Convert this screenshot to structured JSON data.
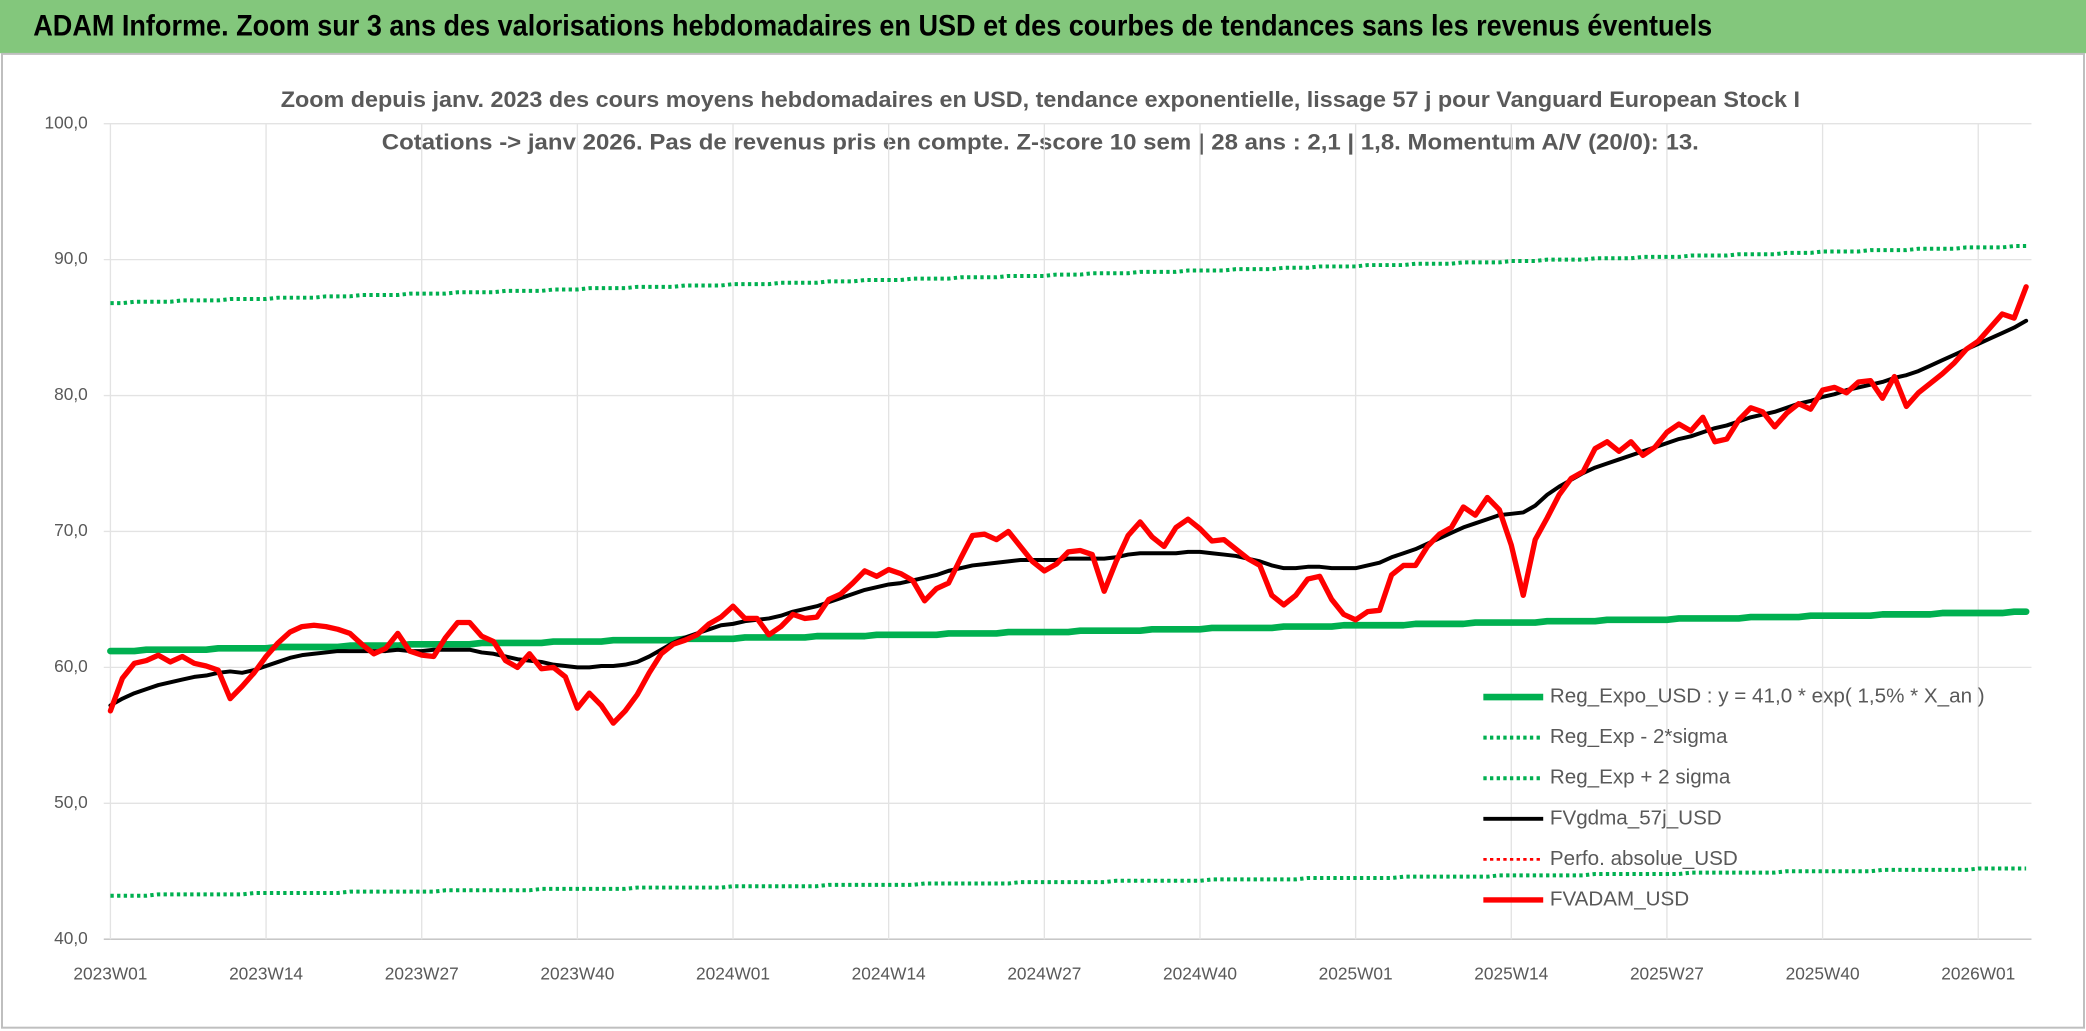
{
  "header": {
    "title": "ADAM Informe. Zoom sur 3 ans des valorisations hebdomadaires en USD et des courbes de tendances sans les revenus éventuels"
  },
  "chart_data": {
    "type": "line",
    "title": "Zoom depuis janv. 2023 des cours moyens hebdomadaires en USD, tendance exponentielle, lissage 57 j pour Vanguard European Stock I",
    "subtitle": "Cotations -> janv 2026. Pas de revenus pris en compte. Z-score 10 sem | 28 ans : 2,1 | 1,8. Momentum A/V (20/0): 13.",
    "categories": [
      "2023W01",
      null,
      null,
      null,
      null,
      null,
      null,
      null,
      null,
      null,
      null,
      null,
      null,
      "2023W14",
      null,
      null,
      null,
      null,
      null,
      null,
      null,
      null,
      null,
      null,
      null,
      null,
      "2023W27",
      null,
      null,
      null,
      null,
      null,
      null,
      null,
      null,
      null,
      null,
      null,
      null,
      "2023W40",
      null,
      null,
      null,
      null,
      null,
      null,
      null,
      null,
      null,
      null,
      null,
      null,
      "2024W01",
      null,
      null,
      null,
      null,
      null,
      null,
      null,
      null,
      null,
      null,
      null,
      null,
      "2024W14",
      null,
      null,
      null,
      null,
      null,
      null,
      null,
      null,
      null,
      null,
      null,
      null,
      "2024W27",
      null,
      null,
      null,
      null,
      null,
      null,
      null,
      null,
      null,
      null,
      null,
      null,
      "2024W40",
      null,
      null,
      null,
      null,
      null,
      null,
      null,
      null,
      null,
      null,
      null,
      null,
      "2025W01",
      null,
      null,
      null,
      null,
      null,
      null,
      null,
      null,
      null,
      null,
      null,
      null,
      "2025W14",
      null,
      null,
      null,
      null,
      null,
      null,
      null,
      null,
      null,
      null,
      null,
      null,
      "2025W27",
      null,
      null,
      null,
      null,
      null,
      null,
      null,
      null,
      null,
      null,
      null,
      null,
      "2025W40",
      null,
      null,
      null,
      null,
      null,
      null,
      null,
      null,
      null,
      null,
      null,
      null,
      "2026W01",
      null,
      null,
      null,
      null
    ],
    "ylim": [
      40,
      100
    ],
    "yticks": [
      {
        "value": 40,
        "label": "40,0"
      },
      {
        "value": 50,
        "label": "50,0"
      },
      {
        "value": 60,
        "label": "60,0"
      },
      {
        "value": 70,
        "label": "70,0"
      },
      {
        "value": 80,
        "label": "80,0"
      },
      {
        "value": 90,
        "label": "90,0"
      },
      {
        "value": 100,
        "label": "100,0"
      }
    ],
    "grid": true,
    "legend": "lower right",
    "series": [
      {
        "name": "Reg_Expo_USD : y = 41,0 * exp( 1,5% *  X_an )",
        "color": "#00b050",
        "style": "solid",
        "width": 5,
        "values": [
          61.2,
          61.2,
          61.2,
          61.3,
          61.3,
          61.3,
          61.3,
          61.3,
          61.3,
          61.4,
          61.4,
          61.4,
          61.4,
          61.4,
          61.5,
          61.5,
          61.5,
          61.5,
          61.5,
          61.5,
          61.6,
          61.6,
          61.6,
          61.6,
          61.6,
          61.7,
          61.7,
          61.7,
          61.7,
          61.7,
          61.7,
          61.8,
          61.8,
          61.8,
          61.8,
          61.8,
          61.8,
          61.9,
          61.9,
          61.9,
          61.9,
          61.9,
          62,
          62,
          62,
          62,
          62,
          62,
          62.1,
          62.1,
          62.1,
          62.1,
          62.1,
          62.2,
          62.2,
          62.2,
          62.2,
          62.2,
          62.2,
          62.3,
          62.3,
          62.3,
          62.3,
          62.3,
          62.4,
          62.4,
          62.4,
          62.4,
          62.4,
          62.4,
          62.5,
          62.5,
          62.5,
          62.5,
          62.5,
          62.6,
          62.6,
          62.6,
          62.6,
          62.6,
          62.6,
          62.7,
          62.7,
          62.7,
          62.7,
          62.7,
          62.7,
          62.8,
          62.8,
          62.8,
          62.8,
          62.8,
          62.9,
          62.9,
          62.9,
          62.9,
          62.9,
          62.9,
          63,
          63,
          63,
          63,
          63,
          63.1,
          63.1,
          63.1,
          63.1,
          63.1,
          63.1,
          63.2,
          63.2,
          63.2,
          63.2,
          63.2,
          63.3,
          63.3,
          63.3,
          63.3,
          63.3,
          63.3,
          63.4,
          63.4,
          63.4,
          63.4,
          63.4,
          63.5,
          63.5,
          63.5,
          63.5,
          63.5,
          63.5,
          63.6,
          63.6,
          63.6,
          63.6,
          63.6,
          63.6,
          63.7,
          63.7,
          63.7,
          63.7,
          63.7,
          63.8,
          63.8,
          63.8,
          63.8,
          63.8,
          63.8,
          63.9,
          63.9,
          63.9,
          63.9,
          63.9,
          64,
          64,
          64,
          64,
          64,
          64,
          64.1,
          64.1
        ]
      },
      {
        "name": "Reg_Exp - 2*sigma",
        "color": "#00b050",
        "style": "dotted",
        "width": 3,
        "values": [
          43.2,
          43.2,
          43.2,
          43.2,
          43.3,
          43.3,
          43.3,
          43.3,
          43.3,
          43.3,
          43.3,
          43.3,
          43.4,
          43.4,
          43.4,
          43.4,
          43.4,
          43.4,
          43.4,
          43.4,
          43.5,
          43.5,
          43.5,
          43.5,
          43.5,
          43.5,
          43.5,
          43.5,
          43.6,
          43.6,
          43.6,
          43.6,
          43.6,
          43.6,
          43.6,
          43.6,
          43.7,
          43.7,
          43.7,
          43.7,
          43.7,
          43.7,
          43.7,
          43.7,
          43.8,
          43.8,
          43.8,
          43.8,
          43.8,
          43.8,
          43.8,
          43.8,
          43.9,
          43.9,
          43.9,
          43.9,
          43.9,
          43.9,
          43.9,
          43.9,
          44,
          44,
          44,
          44,
          44,
          44,
          44,
          44,
          44.1,
          44.1,
          44.1,
          44.1,
          44.1,
          44.1,
          44.1,
          44.1,
          44.2,
          44.2,
          44.2,
          44.2,
          44.2,
          44.2,
          44.2,
          44.2,
          44.3,
          44.3,
          44.3,
          44.3,
          44.3,
          44.3,
          44.3,
          44.3,
          44.4,
          44.4,
          44.4,
          44.4,
          44.4,
          44.4,
          44.4,
          44.4,
          44.5,
          44.5,
          44.5,
          44.5,
          44.5,
          44.5,
          44.5,
          44.5,
          44.6,
          44.6,
          44.6,
          44.6,
          44.6,
          44.6,
          44.6,
          44.6,
          44.7,
          44.7,
          44.7,
          44.7,
          44.7,
          44.7,
          44.7,
          44.7,
          44.8,
          44.8,
          44.8,
          44.8,
          44.8,
          44.8,
          44.8,
          44.8,
          44.9,
          44.9,
          44.9,
          44.9,
          44.9,
          44.9,
          44.9,
          44.9,
          45,
          45,
          45,
          45,
          45,
          45,
          45,
          45,
          45.1,
          45.1,
          45.1,
          45.1,
          45.1,
          45.1,
          45.1,
          45.1,
          45.2,
          45.2,
          45.2,
          45.2,
          45.2
        ]
      },
      {
        "name": "Reg_Exp + 2 sigma",
        "color": "#00b050",
        "style": "dotted",
        "width": 3,
        "values": [
          86.8,
          86.8,
          86.9,
          86.9,
          86.9,
          86.9,
          87,
          87,
          87,
          87,
          87.1,
          87.1,
          87.1,
          87.1,
          87.2,
          87.2,
          87.2,
          87.2,
          87.3,
          87.3,
          87.3,
          87.4,
          87.4,
          87.4,
          87.4,
          87.5,
          87.5,
          87.5,
          87.5,
          87.6,
          87.6,
          87.6,
          87.6,
          87.7,
          87.7,
          87.7,
          87.7,
          87.8,
          87.8,
          87.8,
          87.9,
          87.9,
          87.9,
          87.9,
          88,
          88,
          88,
          88,
          88.1,
          88.1,
          88.1,
          88.1,
          88.2,
          88.2,
          88.2,
          88.2,
          88.3,
          88.3,
          88.3,
          88.3,
          88.4,
          88.4,
          88.4,
          88.5,
          88.5,
          88.5,
          88.5,
          88.6,
          88.6,
          88.6,
          88.6,
          88.7,
          88.7,
          88.7,
          88.7,
          88.8,
          88.8,
          88.8,
          88.8,
          88.9,
          88.9,
          88.9,
          89,
          89,
          89,
          89,
          89.1,
          89.1,
          89.1,
          89.1,
          89.2,
          89.2,
          89.2,
          89.2,
          89.3,
          89.3,
          89.3,
          89.3,
          89.4,
          89.4,
          89.4,
          89.5,
          89.5,
          89.5,
          89.5,
          89.6,
          89.6,
          89.6,
          89.6,
          89.7,
          89.7,
          89.7,
          89.7,
          89.8,
          89.8,
          89.8,
          89.8,
          89.9,
          89.9,
          89.9,
          90,
          90,
          90,
          90,
          90.1,
          90.1,
          90.1,
          90.1,
          90.2,
          90.2,
          90.2,
          90.2,
          90.3,
          90.3,
          90.3,
          90.3,
          90.4,
          90.4,
          90.4,
          90.4,
          90.5,
          90.5,
          90.5,
          90.6,
          90.6,
          90.6,
          90.6,
          90.7,
          90.7,
          90.7,
          90.7,
          90.8,
          90.8,
          90.8,
          90.8,
          90.9,
          90.9,
          90.9,
          90.9,
          91,
          91
        ]
      },
      {
        "name": "FVgdma_57j_USD",
        "color": "#000000",
        "style": "solid",
        "width": 3,
        "values": [
          57.2,
          57.7,
          58.1,
          58.4,
          58.7,
          58.9,
          59.1,
          59.3,
          59.4,
          59.6,
          59.7,
          59.6,
          59.8,
          60.1,
          60.4,
          60.7,
          60.9,
          61,
          61.1,
          61.2,
          61.2,
          61.2,
          61.2,
          61.2,
          61.3,
          61.2,
          61.2,
          61.3,
          61.3,
          61.3,
          61.3,
          61.1,
          61,
          60.8,
          60.6,
          60.5,
          60.4,
          60.2,
          60.1,
          60,
          60,
          60.1,
          60.1,
          60.2,
          60.4,
          60.8,
          61.3,
          61.8,
          62.2,
          62.5,
          62.8,
          63.1,
          63.2,
          63.4,
          63.5,
          63.6,
          63.8,
          64.1,
          64.3,
          64.5,
          64.8,
          65.1,
          65.4,
          65.7,
          65.9,
          66.1,
          66.2,
          66.4,
          66.6,
          66.8,
          67.1,
          67.3,
          67.5,
          67.6,
          67.7,
          67.8,
          67.9,
          67.9,
          67.9,
          67.9,
          68,
          68,
          68,
          68,
          68.1,
          68.3,
          68.4,
          68.4,
          68.4,
          68.4,
          68.5,
          68.5,
          68.4,
          68.3,
          68.2,
          68,
          67.8,
          67.5,
          67.3,
          67.3,
          67.4,
          67.4,
          67.3,
          67.3,
          67.3,
          67.5,
          67.7,
          68.1,
          68.4,
          68.7,
          69.1,
          69.5,
          69.9,
          70.3,
          70.6,
          70.9,
          71.2,
          71.3,
          71.4,
          71.9,
          72.7,
          73.3,
          73.8,
          74.3,
          74.7,
          75,
          75.3,
          75.6,
          75.9,
          76.2,
          76.5,
          76.8,
          77,
          77.3,
          77.6,
          77.8,
          78.1,
          78.4,
          78.6,
          78.8,
          79.1,
          79.4,
          79.6,
          79.9,
          80.1,
          80.4,
          80.6,
          80.8,
          81,
          81.3,
          81.5,
          81.8,
          82.2,
          82.6,
          83,
          83.4,
          83.8,
          84.2,
          84.6,
          85,
          85.5
        ]
      },
      {
        "name": "Perfo. absolue_USD",
        "color": "#ff0000",
        "style": "dotted",
        "width": 2,
        "values": [
          null,
          null,
          null,
          null,
          null,
          null,
          null,
          null,
          null,
          null,
          null,
          null,
          null,
          null,
          null,
          null,
          null,
          null,
          null,
          null,
          null,
          null,
          null,
          null,
          null,
          null,
          null,
          null,
          null,
          null,
          null,
          null,
          null,
          null,
          null,
          null,
          null,
          null,
          null,
          null,
          null,
          null,
          null,
          null,
          null,
          null,
          null,
          null,
          null,
          null,
          null,
          null,
          null,
          null,
          null,
          null,
          null,
          null,
          null,
          null,
          null,
          null,
          null,
          null,
          null,
          null,
          null,
          null,
          null,
          null,
          null,
          null,
          null,
          null,
          null,
          null,
          null,
          null,
          null,
          null,
          null,
          null,
          null,
          null,
          null,
          null,
          null,
          null,
          null,
          null,
          null,
          null,
          null,
          null,
          null,
          null,
          null,
          null,
          null,
          null,
          null,
          null,
          null,
          null,
          null,
          null,
          null,
          null,
          null,
          null,
          null,
          null,
          null,
          null,
          null,
          null,
          null,
          null,
          null,
          null,
          null,
          null,
          null,
          null,
          null,
          null,
          null,
          null,
          null,
          null,
          null,
          null,
          null,
          null,
          null,
          null,
          null,
          null,
          null,
          null,
          null,
          null,
          null,
          null,
          null,
          null,
          null,
          null,
          null,
          null,
          null,
          null,
          null,
          null,
          null,
          null,
          null,
          null,
          null,
          null,
          null
        ]
      },
      {
        "name": "FVADAM_USD",
        "color": "#ff0000",
        "style": "solid",
        "width": 4,
        "values": [
          56.8,
          59.2,
          60.3,
          60.5,
          60.9,
          60.4,
          60.8,
          60.3,
          60.1,
          59.8,
          57.7,
          58.6,
          59.6,
          60.8,
          61.8,
          62.6,
          63,
          63.1,
          63,
          62.8,
          62.5,
          61.7,
          61,
          61.4,
          62.5,
          61.2,
          60.9,
          60.8,
          62.2,
          63.3,
          63.3,
          62.3,
          61.9,
          60.5,
          60,
          61,
          59.9,
          60,
          59.3,
          57,
          58.1,
          57.2,
          55.9,
          56.8,
          58,
          59.6,
          61,
          61.7,
          62,
          62.4,
          63.2,
          63.7,
          64.5,
          63.6,
          63.6,
          62.4,
          63,
          63.9,
          63.6,
          63.7,
          65,
          65.4,
          66.2,
          67.1,
          66.7,
          67.2,
          66.9,
          66.4,
          64.9,
          65.8,
          66.2,
          68,
          69.7,
          69.8,
          69.4,
          70,
          68.9,
          67.8,
          67.1,
          67.6,
          68.5,
          68.6,
          68.3,
          65.6,
          67.8,
          69.7,
          70.7,
          69.6,
          68.9,
          70.3,
          70.9,
          70.2,
          69.3,
          69.4,
          68.7,
          68,
          67.5,
          65.3,
          64.6,
          65.3,
          66.5,
          66.7,
          65,
          63.9,
          63.5,
          64.1,
          64.2,
          66.8,
          67.5,
          67.5,
          68.9,
          69.8,
          70.3,
          71.8,
          71.2,
          72.5,
          71.6,
          69,
          65.3,
          69.4,
          71,
          72.7,
          73.9,
          74.4,
          76.1,
          76.6,
          75.9,
          76.6,
          75.6,
          76.2,
          77.3,
          77.9,
          77.4,
          78.4,
          76.6,
          76.8,
          78.2,
          79.1,
          78.8,
          77.7,
          78.7,
          79.4,
          79,
          80.4,
          80.6,
          80.2,
          81,
          81.1,
          79.8,
          81.4,
          79.2,
          80.2,
          80.9,
          81.6,
          82.4,
          83.4,
          84,
          85,
          86,
          85.7,
          88
        ]
      }
    ]
  }
}
